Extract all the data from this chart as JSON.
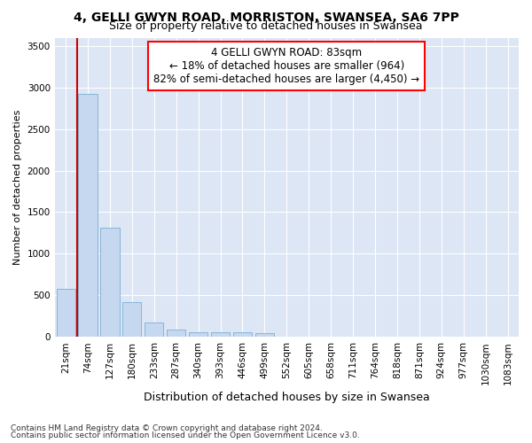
{
  "title1": "4, GELLI GWYN ROAD, MORRISTON, SWANSEA, SA6 7PP",
  "title2": "Size of property relative to detached houses in Swansea",
  "xlabel": "Distribution of detached houses by size in Swansea",
  "ylabel": "Number of detached properties",
  "footer1": "Contains HM Land Registry data © Crown copyright and database right 2024.",
  "footer2": "Contains public sector information licensed under the Open Government Licence v3.0.",
  "annotation_line1": "4 GELLI GWYN ROAD: 83sqm",
  "annotation_line2": "← 18% of detached houses are smaller (964)",
  "annotation_line3": "82% of semi-detached houses are larger (4,450) →",
  "bar_color": "#c5d8f0",
  "bar_edge_color": "#7aafd4",
  "vline_color": "#cc0000",
  "categories": [
    "21sqm",
    "74sqm",
    "127sqm",
    "180sqm",
    "233sqm",
    "287sqm",
    "340sqm",
    "393sqm",
    "446sqm",
    "499sqm",
    "552sqm",
    "605sqm",
    "658sqm",
    "711sqm",
    "764sqm",
    "818sqm",
    "871sqm",
    "924sqm",
    "977sqm",
    "1030sqm",
    "1083sqm"
  ],
  "values": [
    575,
    2920,
    1315,
    415,
    170,
    85,
    55,
    55,
    50,
    40,
    0,
    0,
    0,
    0,
    0,
    0,
    0,
    0,
    0,
    0,
    0
  ],
  "ylim": [
    0,
    3600
  ],
  "yticks": [
    0,
    500,
    1000,
    1500,
    2000,
    2500,
    3000,
    3500
  ],
  "fig_bg_color": "#ffffff",
  "plot_bg_color": "#dce6f5",
  "grid_color": "#ffffff",
  "title1_fontsize": 10,
  "title2_fontsize": 9,
  "xlabel_fontsize": 9,
  "ylabel_fontsize": 8,
  "tick_fontsize": 7.5,
  "footer_fontsize": 6.5,
  "ann_fontsize": 8.5
}
